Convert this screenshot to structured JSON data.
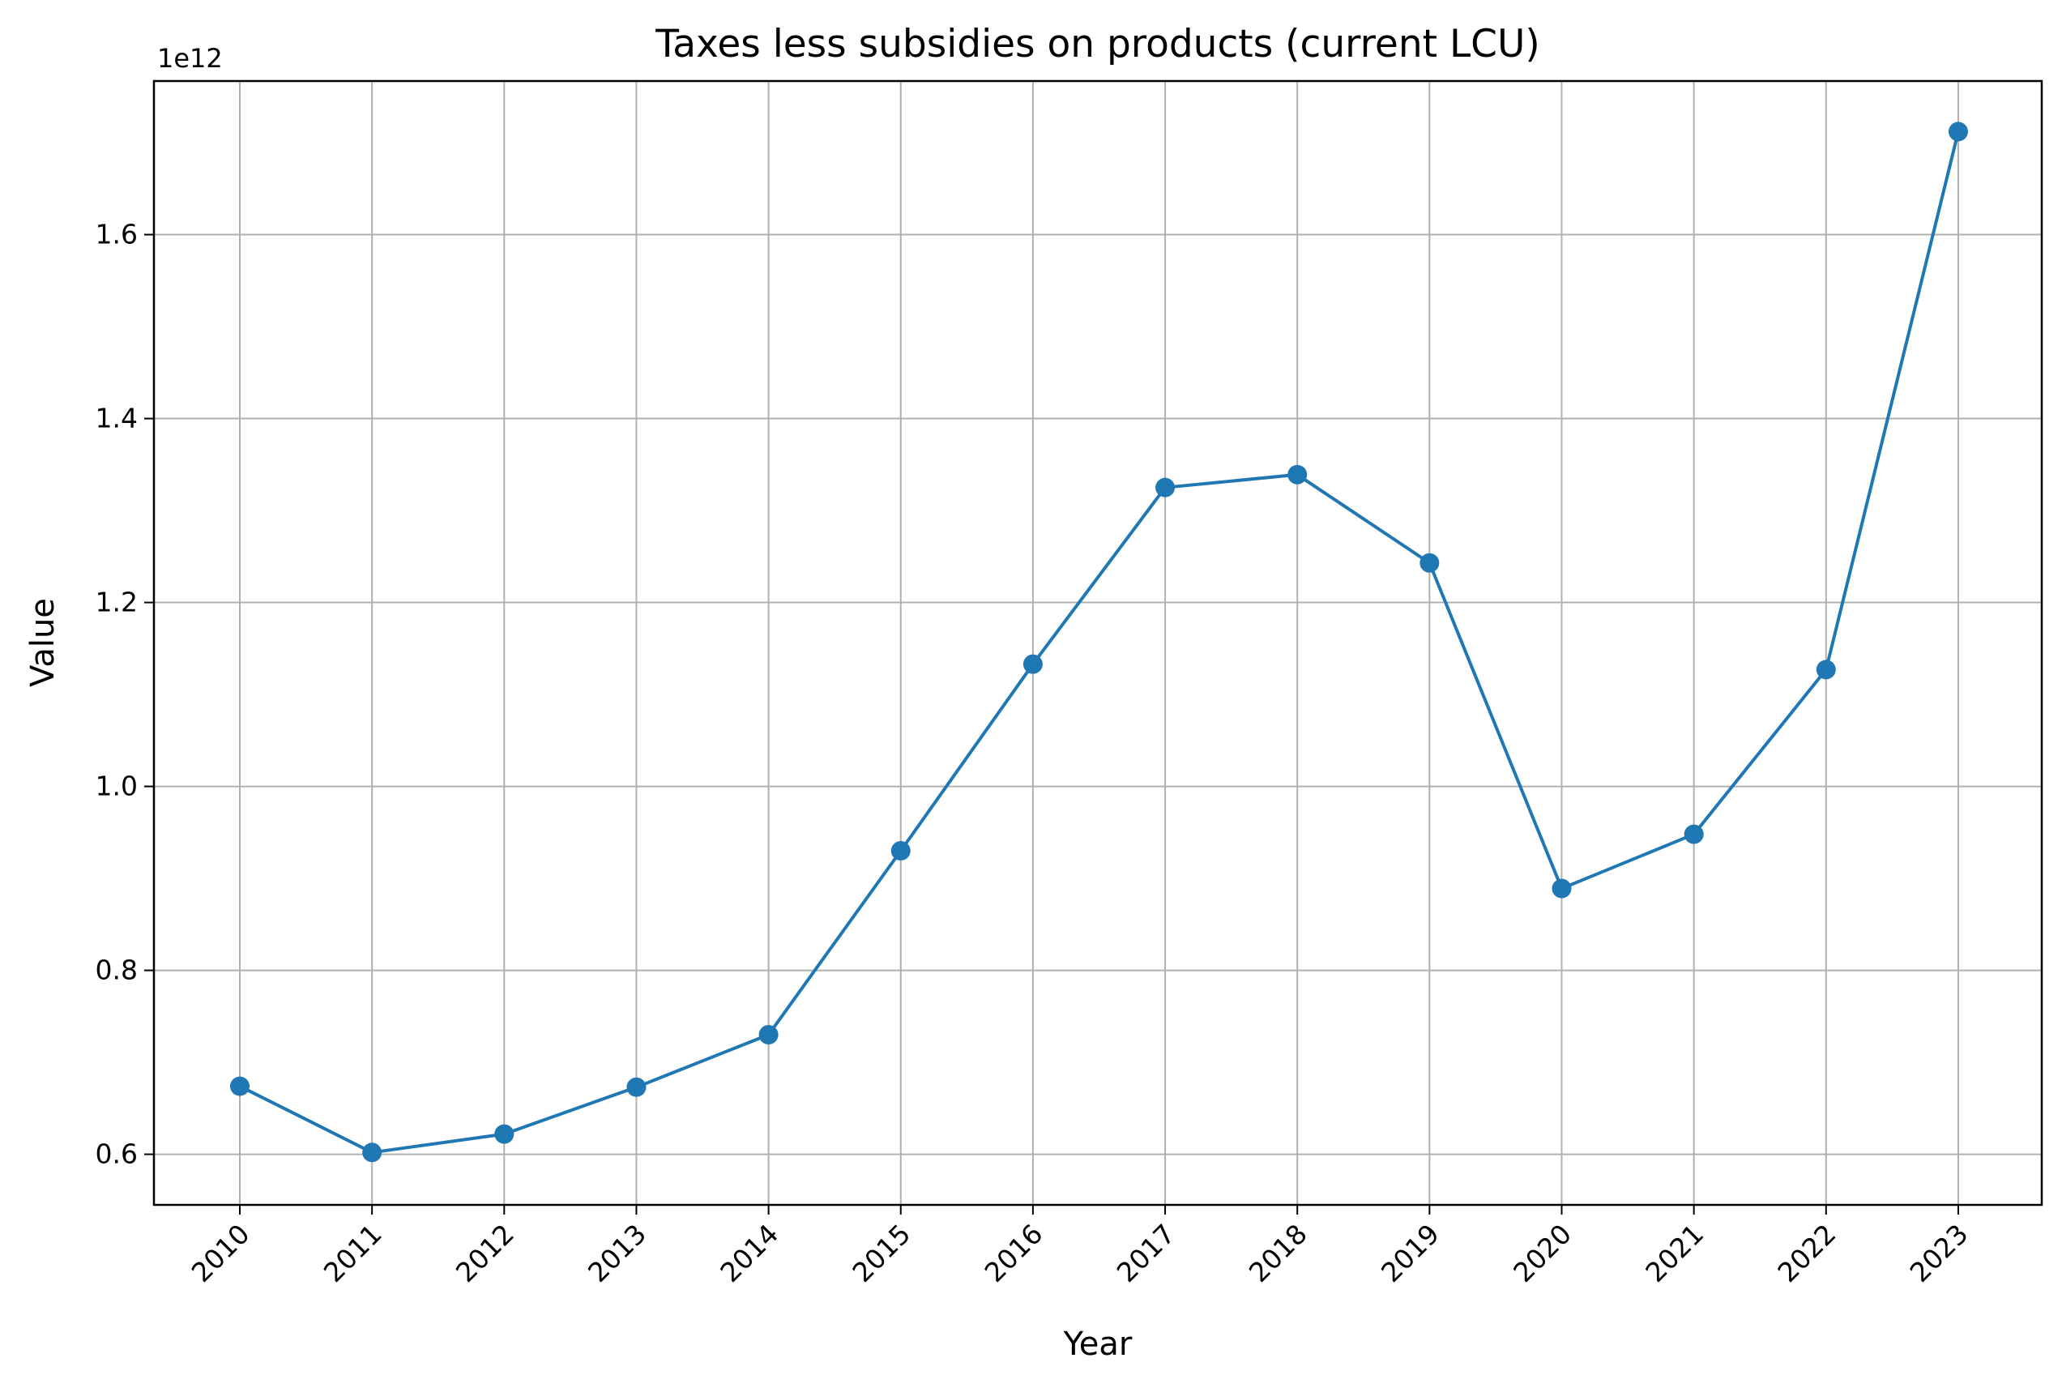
{
  "chart_data": {
    "type": "line",
    "title": "Taxes less subsidies on products (current LCU)",
    "xlabel": "Year",
    "ylabel": "Value",
    "y_scale_label": "1e12",
    "x": [
      "2010",
      "2011",
      "2012",
      "2013",
      "2014",
      "2015",
      "2016",
      "2017",
      "2018",
      "2019",
      "2020",
      "2021",
      "2022",
      "2023"
    ],
    "y_tick_labels": [
      "0.6",
      "0.8",
      "1.0",
      "1.2",
      "1.4",
      "1.6"
    ],
    "y_ticks": [
      0.6,
      0.8,
      1.0,
      1.2,
      1.4,
      1.6
    ],
    "ylim": [
      0.545,
      1.767
    ],
    "series": [
      {
        "values": [
          0.674,
          0.602,
          0.622,
          0.673,
          0.73,
          0.93,
          1.133,
          1.325,
          1.339,
          1.243,
          0.889,
          0.948,
          1.127,
          1.712
        ],
        "color": "#1f77b4",
        "marker": "circle"
      }
    ],
    "grid": true,
    "x_tick_rotation": 45
  }
}
